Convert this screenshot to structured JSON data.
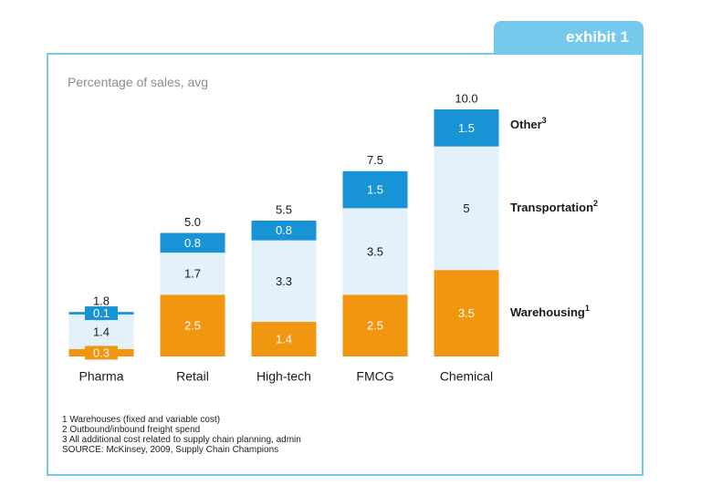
{
  "exhibit_label": "exhibit 1",
  "subtitle": "Percentage of sales, avg",
  "colors": {
    "warehousing": "#f0960f",
    "transportation": "#e3f1fb",
    "other": "#1793d6",
    "accent_border": "#74c9ec",
    "tab": "#74c9ec"
  },
  "chart_data": {
    "type": "bar",
    "stacked": true,
    "title": "",
    "ylabel": "Percentage of sales, avg",
    "categories": [
      "Pharma",
      "Retail",
      "High-tech",
      "FMCG",
      "Chemical"
    ],
    "totals": [
      "1.8",
      "5.0",
      "5.5",
      "7.5",
      "10.0"
    ],
    "series": [
      {
        "name": "Warehousing",
        "superscript": "1",
        "values": [
          0.3,
          2.5,
          1.4,
          2.5,
          3.5
        ],
        "labels": [
          "0.3",
          "2.5",
          "1.4",
          "2.5",
          "3.5"
        ]
      },
      {
        "name": "Transportation",
        "superscript": "2",
        "values": [
          1.4,
          1.7,
          3.3,
          3.5,
          5
        ],
        "labels": [
          "1.4",
          "1.7",
          "3.3",
          "3.5",
          "5"
        ]
      },
      {
        "name": "Other",
        "superscript": "3",
        "values": [
          0.1,
          0.8,
          0.8,
          1.5,
          1.5
        ],
        "labels": [
          "0.1",
          "0.8",
          "0.8",
          "1.5",
          "1.5"
        ]
      }
    ],
    "ylim": [
      0,
      10
    ],
    "grid": false,
    "legend": "right"
  },
  "footnotes": [
    "1  Warehouses (fixed and variable cost)",
    "2  Outbound/inbound freight spend",
    "3  All additional cost related to supply chain planning, admin",
    "SOURCE:  McKinsey, 2009, Supply Chain Champions"
  ]
}
